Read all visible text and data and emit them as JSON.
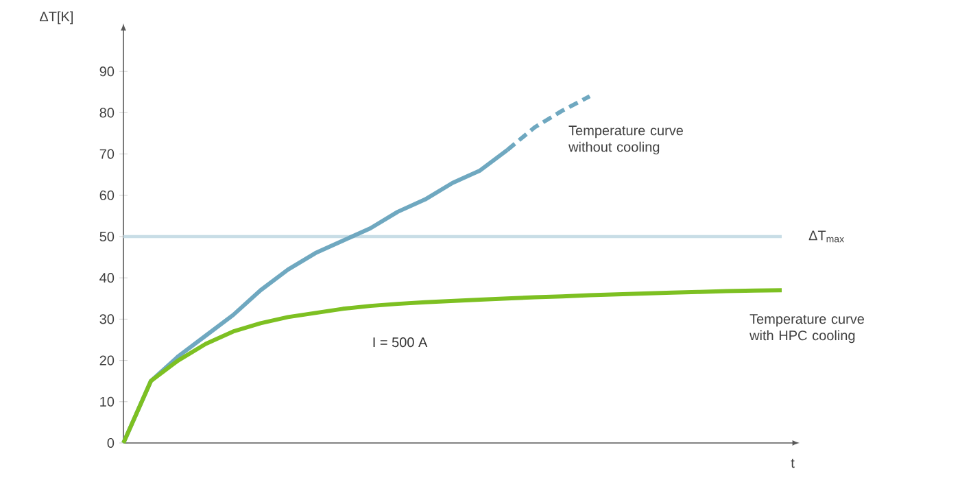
{
  "chart_data": {
    "type": "line",
    "xlabel": "t",
    "ylabel": "ΔT[K]",
    "categories": [
      null,
      null,
      null,
      null,
      null,
      null,
      null,
      null,
      null,
      null,
      null,
      null,
      null,
      null,
      null,
      null,
      null,
      null,
      null,
      null,
      null,
      null,
      null,
      null,
      null
    ],
    "ylim": [
      0,
      100
    ],
    "yticks": [
      0,
      10,
      20,
      30,
      40,
      50,
      60,
      70,
      80,
      90
    ],
    "series": [
      {
        "color": "#6fa8c0",
        "values": [
          0,
          15,
          21,
          26,
          31,
          37,
          42,
          46,
          49,
          52,
          56,
          59,
          63,
          66,
          71,
          null,
          null,
          null,
          null,
          null,
          null,
          null,
          null,
          null,
          null
        ]
      },
      {
        "name": "Temperature curve without cooling",
        "color": "#6fa8c0",
        "line_style": "dashed",
        "values": [
          null,
          null,
          null,
          null,
          null,
          null,
          null,
          null,
          null,
          null,
          null,
          null,
          null,
          null,
          71,
          76.5,
          80.5,
          84,
          null,
          null,
          null,
          null,
          null,
          null,
          null
        ]
      },
      {
        "name": "Temperature curve with HPC cooling",
        "color": "#7dc022",
        "values": [
          0,
          15,
          20,
          24,
          27,
          29,
          30.5,
          31.5,
          32.5,
          33.2,
          33.7,
          34.1,
          34.4,
          34.7,
          35,
          35.3,
          35.5,
          35.8,
          36,
          36.2,
          36.4,
          36.6,
          36.8,
          36.9,
          37
        ]
      }
    ],
    "ref_lines": [
      {
        "axis": "y",
        "value": 50,
        "label": "ΔT$_{max}$",
        "color": "#c8dde6"
      }
    ],
    "annotations": [
      "I = 500 A"
    ],
    "line_style": "solid",
    "marker": "none",
    "grid": false
  }
}
